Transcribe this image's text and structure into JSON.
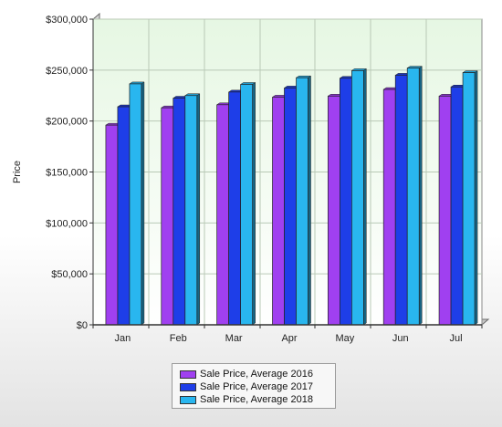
{
  "chart_data": {
    "type": "bar",
    "title": "",
    "xlabel": "",
    "ylabel": "Price",
    "ylim": [
      0,
      300000
    ],
    "yticks": [
      "$0",
      "$50,000",
      "$100,000",
      "$150,000",
      "$200,000",
      "$250,000",
      "$300,000"
    ],
    "categories": [
      "Jan",
      "Feb",
      "Mar",
      "Apr",
      "May",
      "Jun",
      "Jul"
    ],
    "grid": true,
    "legend_position": "bottom",
    "series": [
      {
        "name": "Sale Price, Average 2016",
        "color": "#a040f0",
        "values": [
          196000,
          213000,
          216000,
          223500,
          224500,
          231000,
          224500
        ]
      },
      {
        "name": "Sale Price, Average 2017",
        "color": "#1e3ee8",
        "values": [
          214000,
          222500,
          228500,
          232500,
          242000,
          245000,
          233500
        ]
      },
      {
        "name": "Sale Price, Average 2018",
        "color": "#29b6ef",
        "values": [
          236500,
          225000,
          236000,
          242500,
          249500,
          252000,
          247500
        ]
      }
    ]
  }
}
